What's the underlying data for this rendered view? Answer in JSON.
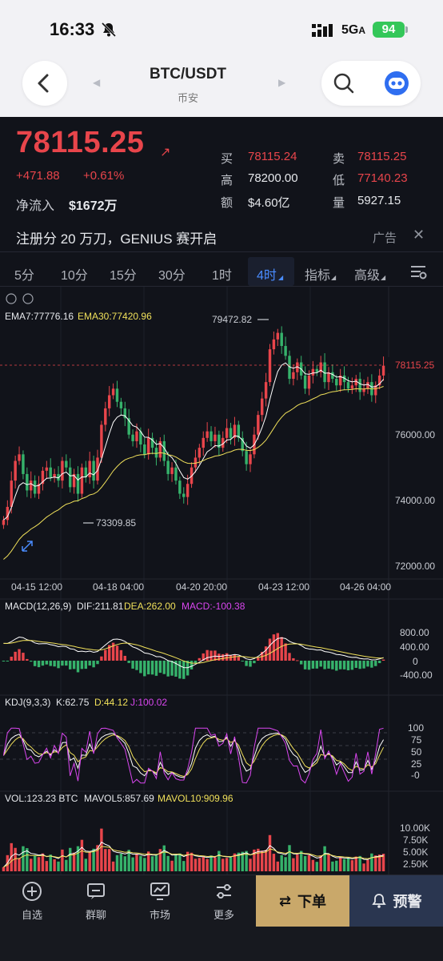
{
  "status_bar": {
    "time": "16:33",
    "network": "5G",
    "network_suffix": "A",
    "battery": "94"
  },
  "header": {
    "pair": "BTC/USDT",
    "exchange": "币安"
  },
  "ticker": {
    "last_price": "78115.25",
    "change_abs": "+471.88",
    "change_pct": "+0.61%",
    "net_inflow_label": "净流入",
    "net_inflow_value": "$1672万",
    "stats": [
      {
        "k": "买",
        "v": "78115.24",
        "red": true
      },
      {
        "k": "卖",
        "v": "78115.25",
        "red": true
      },
      {
        "k": "高",
        "v": "78200.00",
        "red": false
      },
      {
        "k": "低",
        "v": "77140.23",
        "red": true
      },
      {
        "k": "额",
        "v": "$4.60亿",
        "red": false
      },
      {
        "k": "量",
        "v": "5927.15",
        "red": false
      }
    ]
  },
  "ad": {
    "text": "注册分 20 万刀，GENIUS 赛开启",
    "tag": "广告"
  },
  "timeframes": [
    "5分",
    "10分",
    "15分",
    "30分",
    "1时",
    "4时",
    "指标",
    "高级"
  ],
  "active_timeframe": "4时",
  "colors": {
    "up": "#e8454b",
    "down": "#36b26b",
    "accent": "#4a8cff",
    "ema7": "#ffffff",
    "ema30": "#f0e05a",
    "gold": "#c9a86a"
  },
  "main_chart": {
    "ema_label": "EMA7:77776.16",
    "ema30_label": "EMA30:77420.96",
    "price_ticks": [
      "78115.25",
      "76000.00",
      "74000.00",
      "72000.00"
    ],
    "high_marker": "79472.82",
    "low_marker": "73309.85",
    "time_ticks": [
      "04-15 12:00",
      "04-18 04:00",
      "04-20 20:00",
      "04-23 12:00",
      "04-26 04:00"
    ]
  },
  "macd": {
    "label": "MACD(12,26,9)",
    "dif": "DIF:211.81",
    "dea": "DEA:262.00",
    "macd": "MACD:-100.38",
    "ticks": [
      "800.00",
      "400.00",
      "0",
      "-400.00"
    ]
  },
  "kdj": {
    "label": "KDJ(9,3,3)",
    "k": "K:62.75",
    "d": "D:44.12",
    "j": "J:100.02",
    "ticks": [
      "100",
      "75",
      "50",
      "25",
      "-0"
    ]
  },
  "vol": {
    "label": "VOL:123.23 BTC",
    "mavol5": "MAVOL5:857.69",
    "mavol10": "MAVOL10:909.96",
    "ticks": [
      "10.00K",
      "7.50K",
      "5.00K",
      "2.50K"
    ]
  },
  "chart_data": {
    "type": "candlestick",
    "x_range": [
      "04-14 12:00",
      "04-26 16:00"
    ],
    "y_range": [
      72000,
      80000
    ],
    "highlights": {
      "high": 79472.82,
      "low": 73309.85,
      "last": 78115.25
    },
    "ema7_last": 77776.16,
    "ema30_last": 77420.96
  },
  "nav": {
    "items": [
      "自选",
      "群聊",
      "市场",
      "更多"
    ],
    "order_label": "下单",
    "alert_label": "预警"
  }
}
